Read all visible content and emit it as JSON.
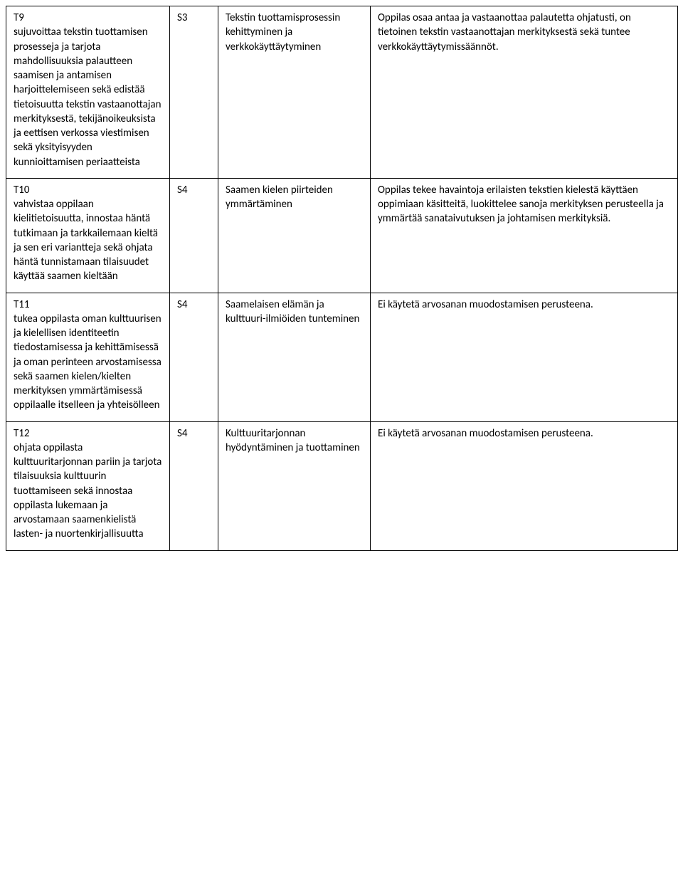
{
  "rows": [
    {
      "col1_code": "T9",
      "col1_text": "sujuvoittaa tekstin tuottamisen prosesseja ja tarjota mahdollisuuksia palautteen saamisen ja antamisen harjoittelemiseen sekä edistää tietoisuutta tekstin vastaanottajan merkityksestä, tekijänoikeuksista ja eettisen verkossa viestimisen sekä yksityisyyden kunnioittamisen periaatteista",
      "col2": "S3",
      "col3": "Tekstin tuottamisprosessin kehittyminen ja verkkokäyttäytyminen",
      "col4": "Oppilas osaa antaa ja vastaanottaa palautetta ohjatusti, on tietoinen tekstin vastaanottajan merkityksestä sekä tuntee verkkokäyttäytymissäännöt.",
      "col4_justify": false
    },
    {
      "col1_code": "T10",
      "col1_text": "vahvistaa oppilaan kielitietoisuutta, innostaa häntä tutkimaan ja tarkkailemaan kieltä ja sen eri variantteja sekä ohjata häntä tunnistamaan tilaisuudet käyttää saamen kieltään",
      "col2": "S4",
      "col3": "Saamen kielen piirteiden ymmärtäminen",
      "col4": "Oppilas tekee havaintoja erilaisten tekstien kielestä käyttäen oppimiaan käsitteitä, luokittelee sanoja merkityksen perusteella ja ymmärtää sanataivutuksen ja johtamisen merkityksiä.",
      "col4_justify": false
    },
    {
      "col1_code": "T11",
      "col1_text": "tukea oppilasta oman kulttuurisen ja kielellisen identiteetin tiedostamisessa ja kehittämisessä ja oman perinteen arvostamisessa sekä saamen kielen/kielten merkityksen ymmärtämisessä oppilaalle itselleen ja yhteisölleen",
      "col2": "S4",
      "col3": "Saamelaisen elämän ja kulttuuri-ilmiöiden tunteminen",
      "col4": "Ei käytetä arvosanan muodostamisen perusteena.",
      "col4_justify": true
    },
    {
      "col1_code": "T12",
      "col1_text": "ohjata oppilasta kulttuuritarjonnan pariin ja tarjota tilaisuuksia kulttuurin tuottamiseen sekä innostaa oppilasta lukemaan ja arvostamaan saamenkielistä lasten- ja nuortenkirjallisuutta",
      "col2": "S4",
      "col3": "Kulttuuritarjonnan hyödyntäminen ja tuottaminen",
      "col4": "Ei käytetä arvosanan muodostamisen perusteena.",
      "col4_justify": false
    }
  ]
}
